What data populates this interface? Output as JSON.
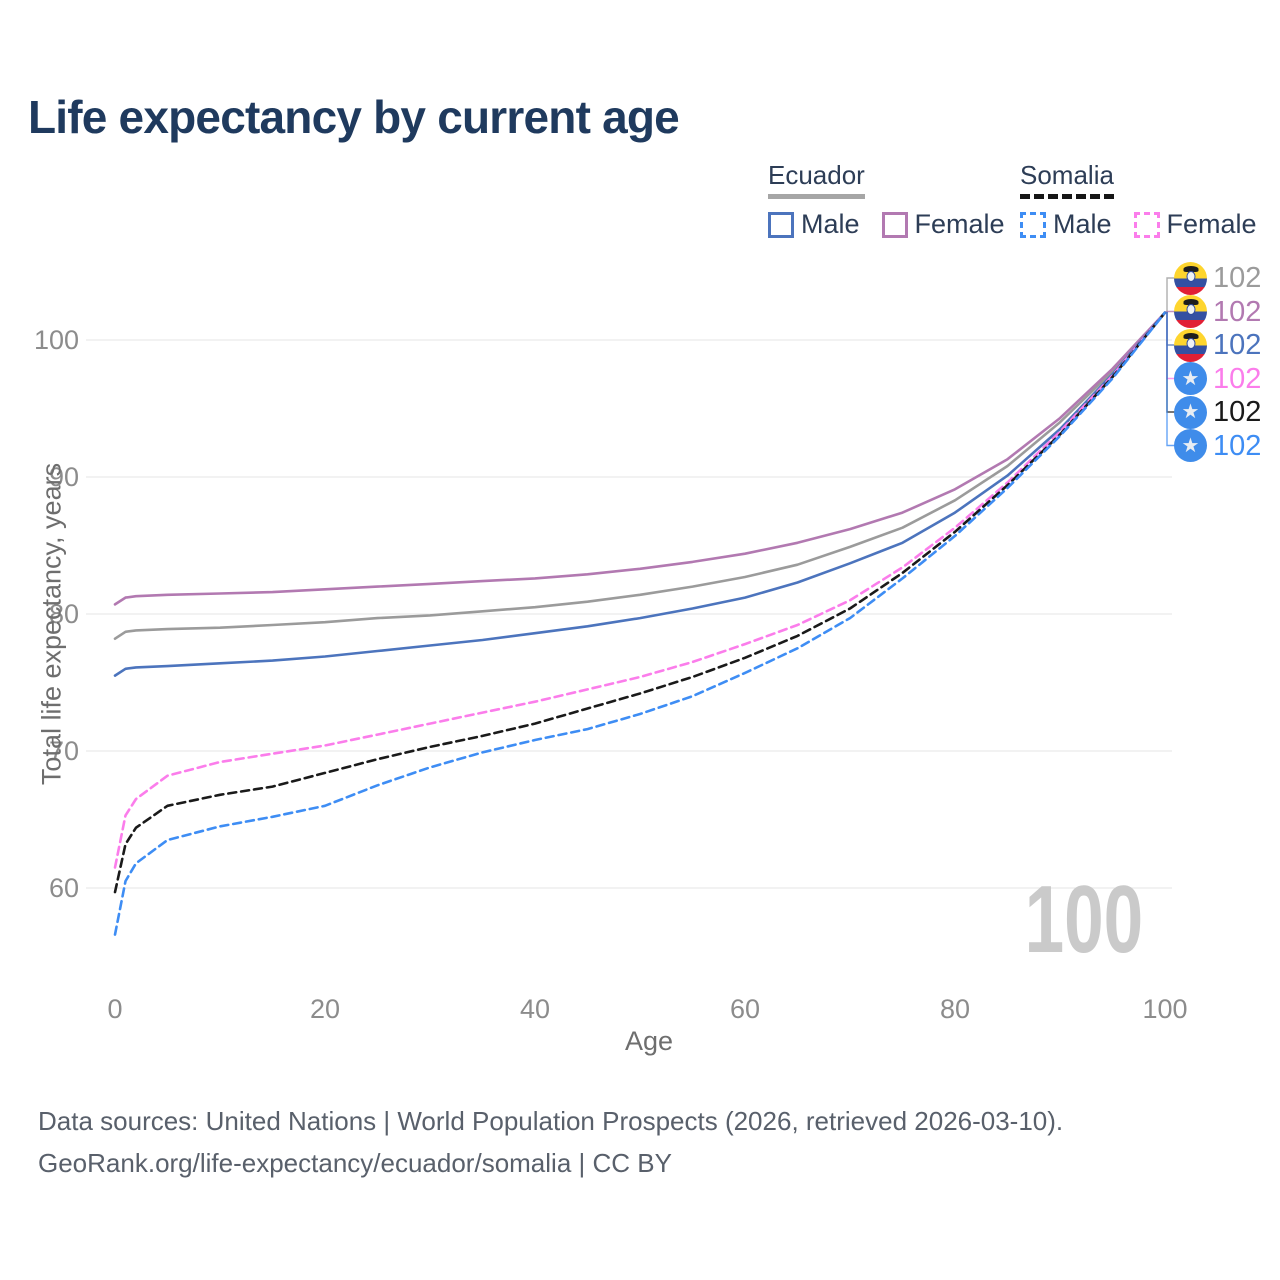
{
  "page": {
    "title": "Life expectancy by current age"
  },
  "legend": {
    "countries": [
      {
        "name": "Ecuador",
        "line_style": "solid",
        "items": [
          {
            "label": "Male",
            "color": "#4c74bd"
          },
          {
            "label": "Female",
            "color": "#b279b1"
          }
        ]
      },
      {
        "name": "Somalia",
        "line_style": "dashed",
        "items": [
          {
            "label": "Male",
            "color": "#3e8df4"
          },
          {
            "label": "Female",
            "color": "#fb7deb"
          }
        ]
      }
    ]
  },
  "icons": {
    "somalia_star": "★",
    "ecuador_flag": "ecuador-flag",
    "somalia_flag": "somalia-flag"
  },
  "theme": {
    "title_color": "#1f3a5e",
    "legend_text": "#2d3d56",
    "tick_color": "#8c8c8c",
    "axis_title_color": "#6e6e6e",
    "grid_color": "#eaeaea",
    "watermark_color": "#cacaca",
    "footer_color": "#59606b"
  },
  "chart_data": {
    "type": "line",
    "title": "Life expectancy by current age",
    "xlabel": "Age",
    "ylabel": "Total life expectancy, years",
    "xlim": [
      0,
      100
    ],
    "ylim": [
      55,
      103
    ],
    "xticks": [
      0,
      20,
      40,
      60,
      80,
      100
    ],
    "yticks": [
      60,
      70,
      80,
      90,
      100
    ],
    "grid": "horizontal",
    "legend_position": "top-right",
    "frame_label": "100",
    "series": [
      {
        "id": "ecuador-both",
        "country": "Ecuador",
        "sex": "Both sexes",
        "color": "#9b9b9b",
        "dash": "solid",
        "flag": "ecuador",
        "end_label": "102",
        "points": [
          [
            0,
            78.2
          ],
          [
            1,
            78.7
          ],
          [
            2,
            78.8
          ],
          [
            5,
            78.9
          ],
          [
            10,
            79.0
          ],
          [
            15,
            79.2
          ],
          [
            20,
            79.4
          ],
          [
            25,
            79.7
          ],
          [
            30,
            79.9
          ],
          [
            35,
            80.2
          ],
          [
            40,
            80.5
          ],
          [
            45,
            80.9
          ],
          [
            50,
            81.4
          ],
          [
            55,
            82.0
          ],
          [
            60,
            82.7
          ],
          [
            65,
            83.6
          ],
          [
            70,
            84.9
          ],
          [
            75,
            86.3
          ],
          [
            80,
            88.3
          ],
          [
            85,
            90.8
          ],
          [
            90,
            94.0
          ],
          [
            95,
            97.7
          ],
          [
            100,
            102
          ]
        ]
      },
      {
        "id": "ecuador-female",
        "country": "Ecuador",
        "sex": "Female",
        "color": "#b279b1",
        "dash": "solid",
        "flag": "ecuador",
        "end_label": "102",
        "points": [
          [
            0,
            80.7
          ],
          [
            1,
            81.2
          ],
          [
            2,
            81.3
          ],
          [
            5,
            81.4
          ],
          [
            10,
            81.5
          ],
          [
            15,
            81.6
          ],
          [
            20,
            81.8
          ],
          [
            25,
            82.0
          ],
          [
            30,
            82.2
          ],
          [
            35,
            82.4
          ],
          [
            40,
            82.6
          ],
          [
            45,
            82.9
          ],
          [
            50,
            83.3
          ],
          [
            55,
            83.8
          ],
          [
            60,
            84.4
          ],
          [
            65,
            85.2
          ],
          [
            70,
            86.2
          ],
          [
            75,
            87.4
          ],
          [
            80,
            89.1
          ],
          [
            85,
            91.3
          ],
          [
            90,
            94.3
          ],
          [
            95,
            97.9
          ],
          [
            100,
            102
          ]
        ]
      },
      {
        "id": "ecuador-male",
        "country": "Ecuador",
        "sex": "Male",
        "color": "#4c74bd",
        "dash": "solid",
        "flag": "ecuador",
        "end_label": "102",
        "points": [
          [
            0,
            75.5
          ],
          [
            1,
            76.0
          ],
          [
            2,
            76.1
          ],
          [
            5,
            76.2
          ],
          [
            10,
            76.4
          ],
          [
            15,
            76.6
          ],
          [
            20,
            76.9
          ],
          [
            25,
            77.3
          ],
          [
            30,
            77.7
          ],
          [
            35,
            78.1
          ],
          [
            40,
            78.6
          ],
          [
            45,
            79.1
          ],
          [
            50,
            79.7
          ],
          [
            55,
            80.4
          ],
          [
            60,
            81.2
          ],
          [
            65,
            82.3
          ],
          [
            70,
            83.7
          ],
          [
            75,
            85.2
          ],
          [
            80,
            87.4
          ],
          [
            85,
            90.1
          ],
          [
            90,
            93.5
          ],
          [
            95,
            97.5
          ],
          [
            100,
            102
          ]
        ]
      },
      {
        "id": "somalia-female",
        "country": "Somalia",
        "sex": "Female",
        "color": "#fb7deb",
        "dash": "dashed",
        "flag": "somalia",
        "end_label": "102",
        "points": [
          [
            0,
            61.5
          ],
          [
            1,
            65.3
          ],
          [
            2,
            66.5
          ],
          [
            5,
            68.2
          ],
          [
            10,
            69.2
          ],
          [
            15,
            69.8
          ],
          [
            20,
            70.4
          ],
          [
            25,
            71.2
          ],
          [
            30,
            72.0
          ],
          [
            35,
            72.8
          ],
          [
            40,
            73.6
          ],
          [
            45,
            74.5
          ],
          [
            50,
            75.4
          ],
          [
            55,
            76.5
          ],
          [
            60,
            77.8
          ],
          [
            65,
            79.2
          ],
          [
            70,
            81.0
          ],
          [
            75,
            83.4
          ],
          [
            80,
            86.3
          ],
          [
            85,
            89.6
          ],
          [
            90,
            93.3
          ],
          [
            95,
            97.4
          ],
          [
            100,
            102
          ]
        ]
      },
      {
        "id": "somalia-both",
        "country": "Somalia",
        "sex": "Both sexes",
        "color": "#1a1a1a",
        "dash": "dashed",
        "flag": "somalia",
        "end_label": "102",
        "points": [
          [
            0,
            59.7
          ],
          [
            1,
            63.2
          ],
          [
            2,
            64.4
          ],
          [
            5,
            66.0
          ],
          [
            10,
            66.8
          ],
          [
            15,
            67.4
          ],
          [
            20,
            68.4
          ],
          [
            25,
            69.4
          ],
          [
            30,
            70.3
          ],
          [
            35,
            71.1
          ],
          [
            40,
            72.0
          ],
          [
            45,
            73.1
          ],
          [
            50,
            74.2
          ],
          [
            55,
            75.4
          ],
          [
            60,
            76.8
          ],
          [
            65,
            78.4
          ],
          [
            70,
            80.4
          ],
          [
            75,
            83.0
          ],
          [
            80,
            86.0
          ],
          [
            85,
            89.4
          ],
          [
            90,
            93.1
          ],
          [
            95,
            97.3
          ],
          [
            100,
            102
          ]
        ]
      },
      {
        "id": "somalia-male",
        "country": "Somalia",
        "sex": "Male",
        "color": "#3e8df4",
        "dash": "dashed",
        "flag": "somalia",
        "end_label": "102",
        "points": [
          [
            0,
            56.6
          ],
          [
            1,
            60.5
          ],
          [
            2,
            61.8
          ],
          [
            5,
            63.5
          ],
          [
            10,
            64.5
          ],
          [
            15,
            65.2
          ],
          [
            20,
            66.0
          ],
          [
            25,
            67.5
          ],
          [
            30,
            68.8
          ],
          [
            35,
            69.9
          ],
          [
            40,
            70.8
          ],
          [
            45,
            71.6
          ],
          [
            50,
            72.7
          ],
          [
            55,
            74.0
          ],
          [
            60,
            75.7
          ],
          [
            65,
            77.5
          ],
          [
            70,
            79.7
          ],
          [
            75,
            82.6
          ],
          [
            80,
            85.7
          ],
          [
            85,
            89.2
          ],
          [
            90,
            93.0
          ],
          [
            95,
            97.2
          ],
          [
            100,
            102
          ]
        ]
      }
    ]
  },
  "footer": {
    "line1": "Data sources: United Nations | World Population Prospects (2026, retrieved 2026-03-10).",
    "line2": "GeoRank.org/life-expectancy/ecuador/somalia | CC BY"
  }
}
